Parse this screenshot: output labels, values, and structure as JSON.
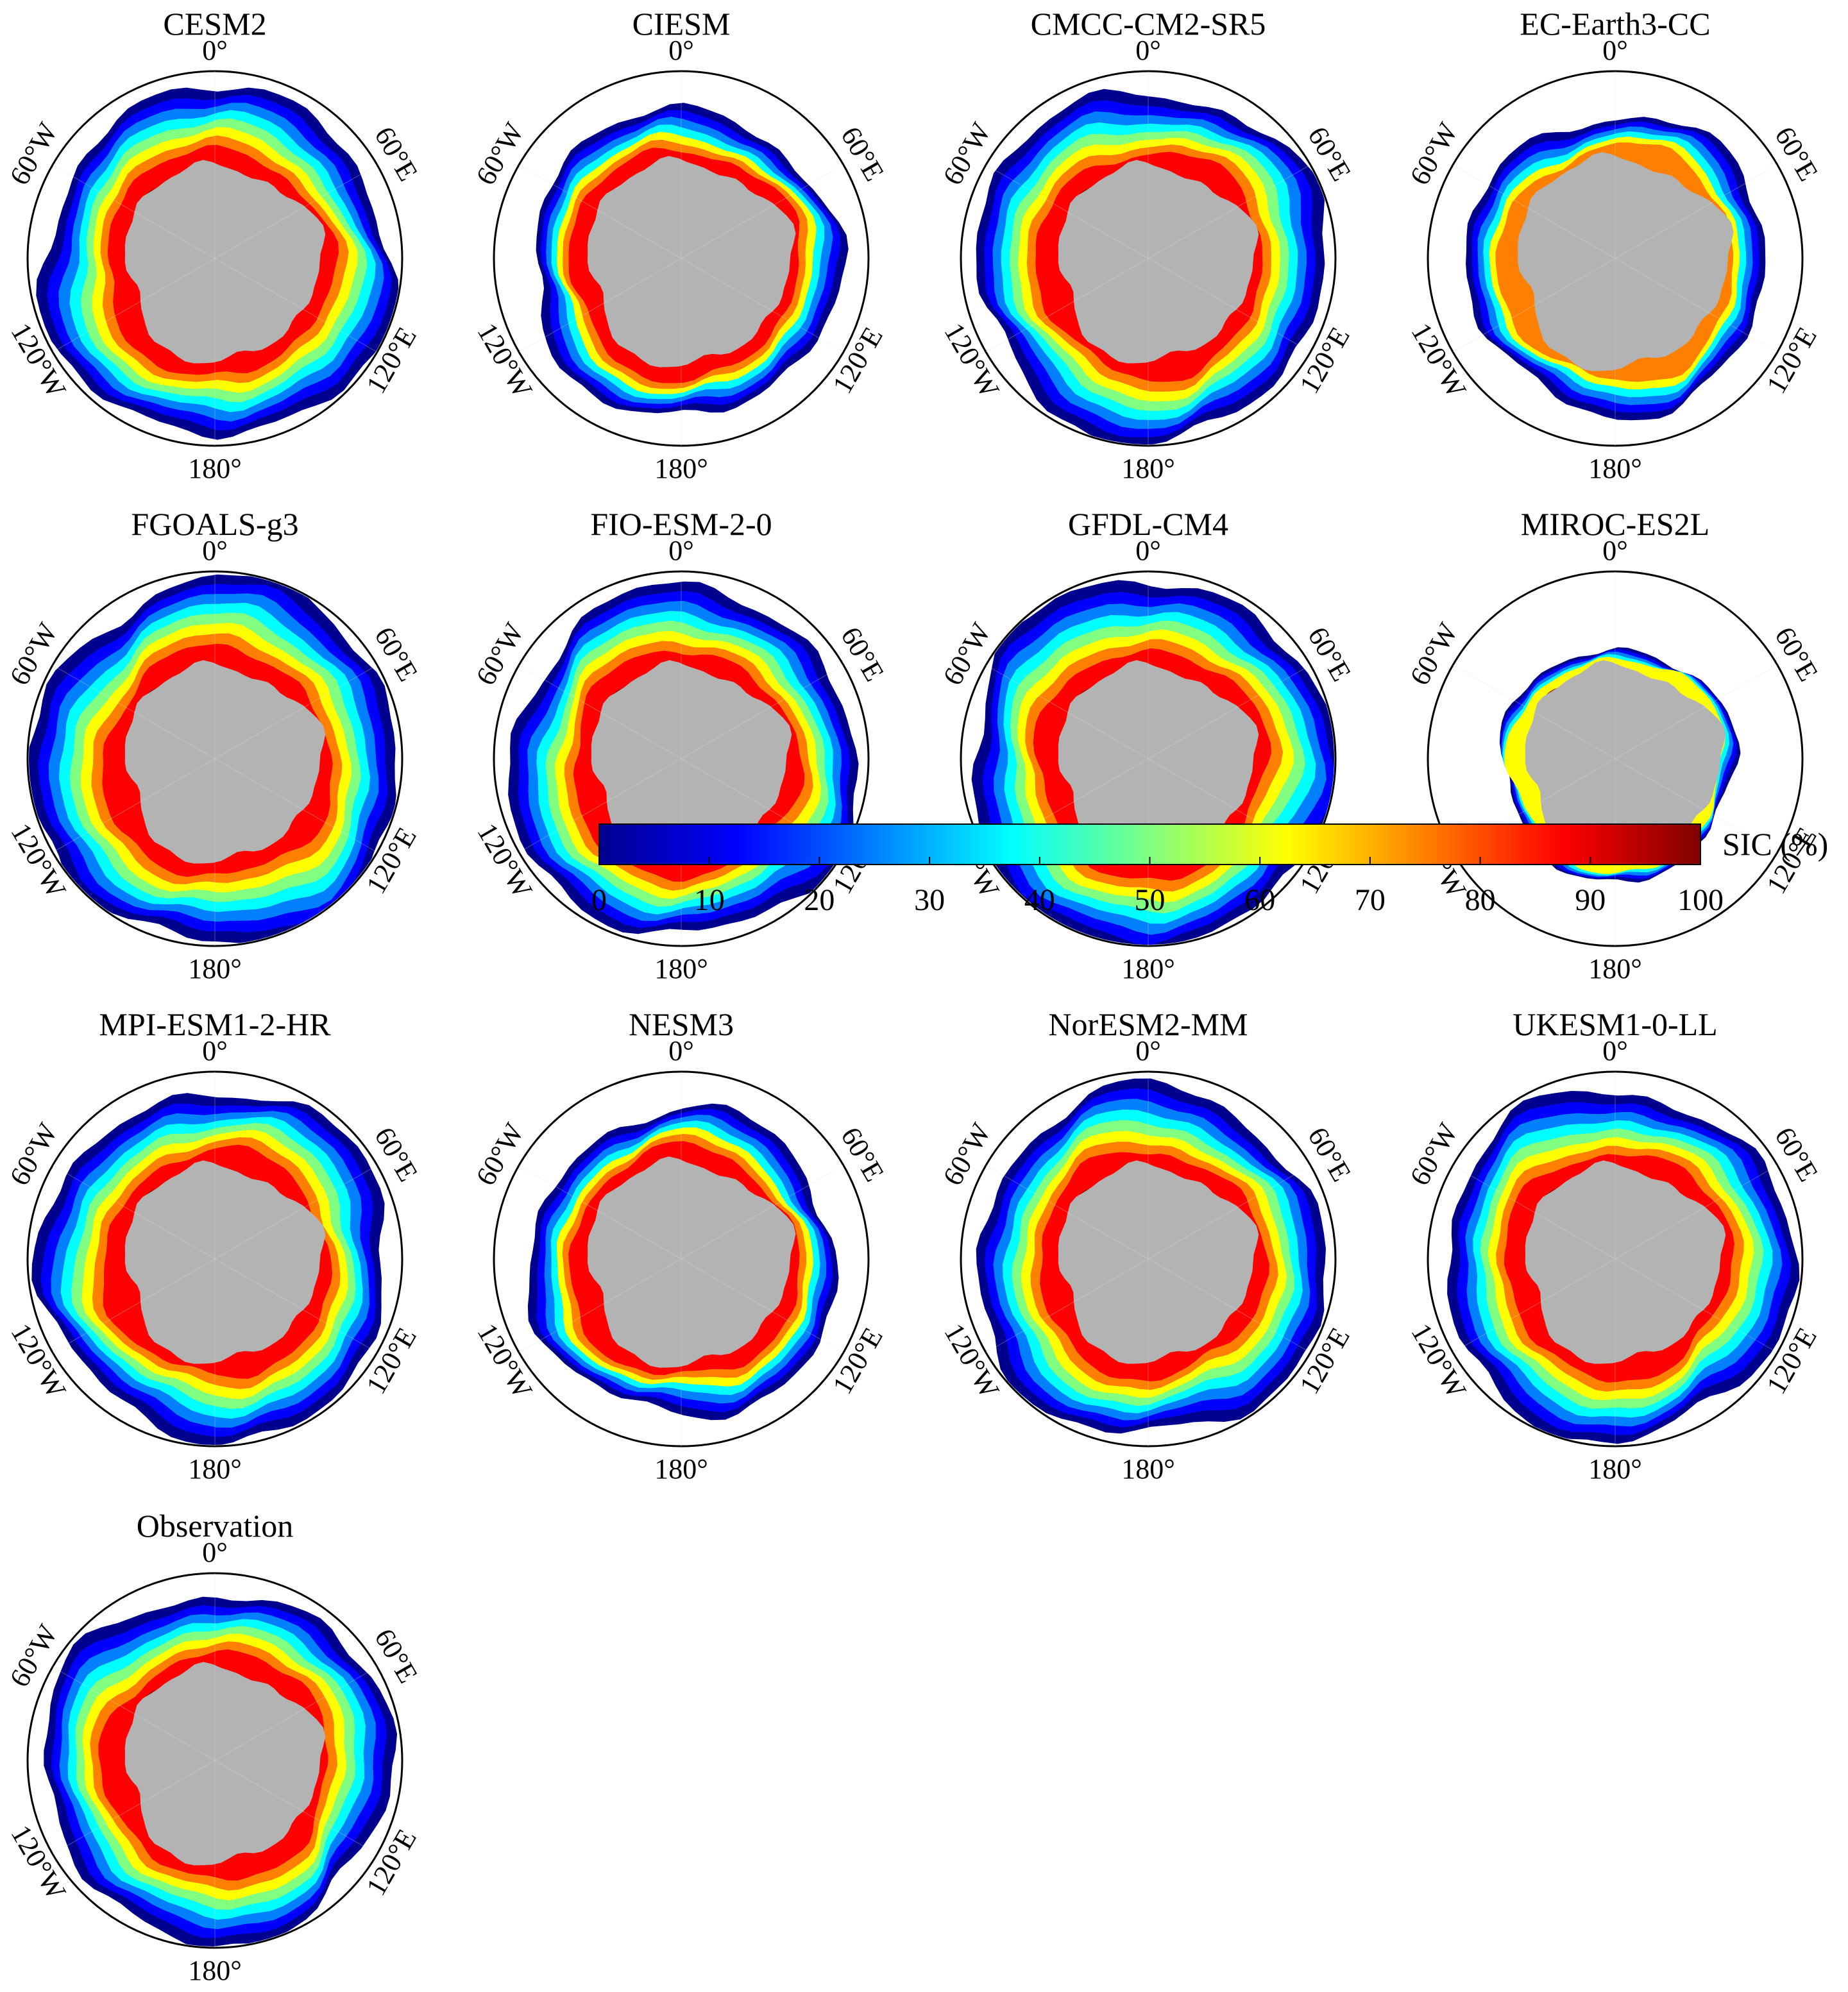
{
  "figure": {
    "panels": [
      {
        "title": "CESM2",
        "pattern": "full"
      },
      {
        "title": "CIESM",
        "pattern": "mid"
      },
      {
        "title": "CMCC-CM2-SR5",
        "pattern": "full"
      },
      {
        "title": "EC-Earth3-CC",
        "pattern": "low"
      },
      {
        "title": "FGOALS-g3",
        "pattern": "wide"
      },
      {
        "title": "FIO-ESM-2-0",
        "pattern": "full"
      },
      {
        "title": "GFDL-CM4",
        "pattern": "wide"
      },
      {
        "title": "MIROC-ES2L",
        "pattern": "thin"
      },
      {
        "title": "MPI-ESM1-2-HR",
        "pattern": "full"
      },
      {
        "title": "NESM3",
        "pattern": "mid"
      },
      {
        "title": "NorESM2-MM",
        "pattern": "full"
      },
      {
        "title": "UKESM1-0-LL",
        "pattern": "full"
      },
      {
        "title": "Observation",
        "pattern": "full"
      }
    ],
    "longitude_labels": {
      "top": "0°",
      "upper_right": "60°E",
      "lower_right": "120°E",
      "bottom": "180°",
      "lower_left": "120°W",
      "upper_left": "60°W"
    }
  },
  "colorbar": {
    "title": "SIC (%)",
    "ticks": [
      "0",
      "10",
      "20",
      "30",
      "40",
      "50",
      "60",
      "70",
      "80",
      "90",
      "100"
    ],
    "colormap": [
      "#00008f",
      "#0000ff",
      "#0080ff",
      "#00ffff",
      "#80ff80",
      "#ffff00",
      "#ff8000",
      "#ff0000",
      "#800000"
    ]
  },
  "colors": {
    "land": "#b3b3b3",
    "frame": "#000000"
  }
}
